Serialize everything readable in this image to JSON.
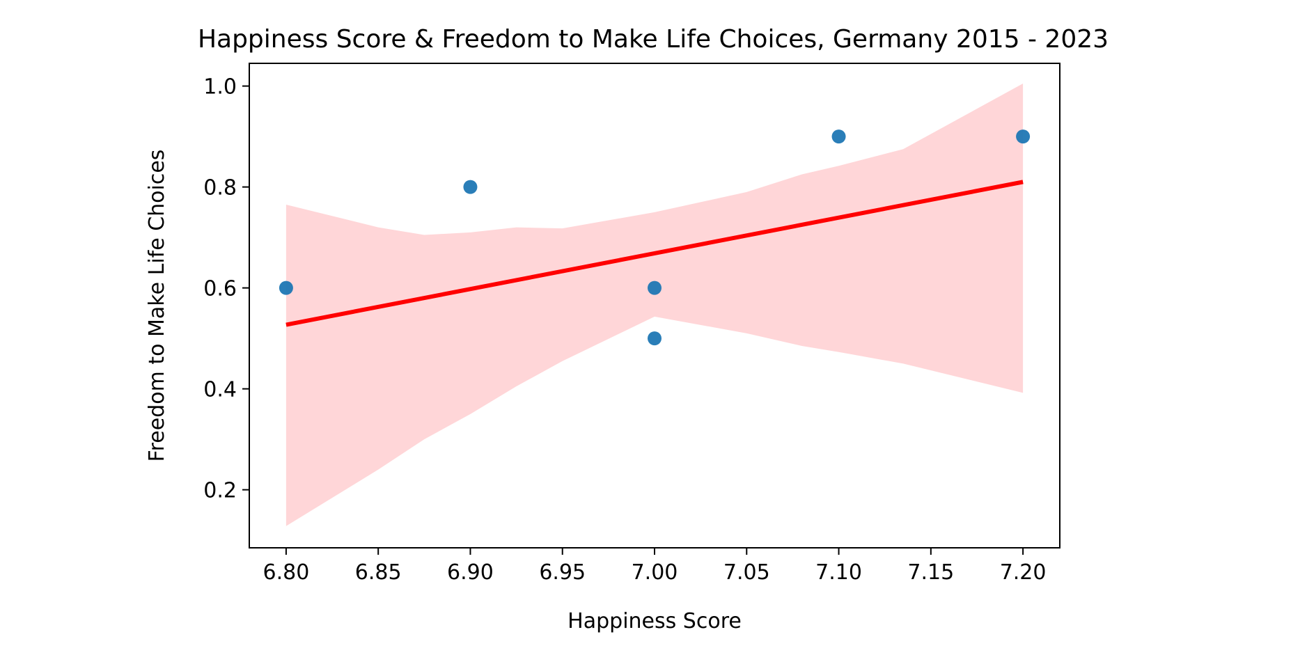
{
  "chart_data": {
    "type": "scatter",
    "title": "Happiness Score & Freedom to Make Life Choices, Germany 2015 - 2023",
    "xlabel": "Happiness Score",
    "ylabel": "Freedom to Make Life Choices",
    "xlim": [
      6.78,
      7.22
    ],
    "ylim": [
      0.085,
      1.045
    ],
    "x_ticks": [
      "6.80",
      "6.85",
      "6.90",
      "6.95",
      "7.00",
      "7.05",
      "7.10",
      "7.15",
      "7.20"
    ],
    "y_ticks": [
      "0.2",
      "0.4",
      "0.6",
      "0.8",
      "1.0"
    ],
    "grid": false,
    "points": [
      {
        "x": 6.8,
        "y": 0.6
      },
      {
        "x": 6.9,
        "y": 0.8
      },
      {
        "x": 7.0,
        "y": 0.6
      },
      {
        "x": 7.0,
        "y": 0.5
      },
      {
        "x": 7.1,
        "y": 0.9
      },
      {
        "x": 7.2,
        "y": 0.9
      }
    ],
    "regression": {
      "x": [
        6.8,
        7.2
      ],
      "y": [
        0.527,
        0.81
      ]
    },
    "confidence_band": {
      "x": [
        6.8,
        6.85,
        6.875,
        6.9,
        6.925,
        6.95,
        7.0,
        7.05,
        7.08,
        7.1,
        7.135,
        7.2
      ],
      "upper": [
        0.765,
        0.72,
        0.705,
        0.71,
        0.72,
        0.718,
        0.75,
        0.79,
        0.825,
        0.842,
        0.875,
        1.005
      ],
      "lower": [
        0.128,
        0.24,
        0.3,
        0.35,
        0.405,
        0.455,
        0.543,
        0.51,
        0.485,
        0.473,
        0.45,
        0.392
      ]
    },
    "colors": {
      "points": "#1f77b4",
      "regression": "#ff0000",
      "band": "#ffd6d8",
      "axes": "#000000"
    }
  }
}
